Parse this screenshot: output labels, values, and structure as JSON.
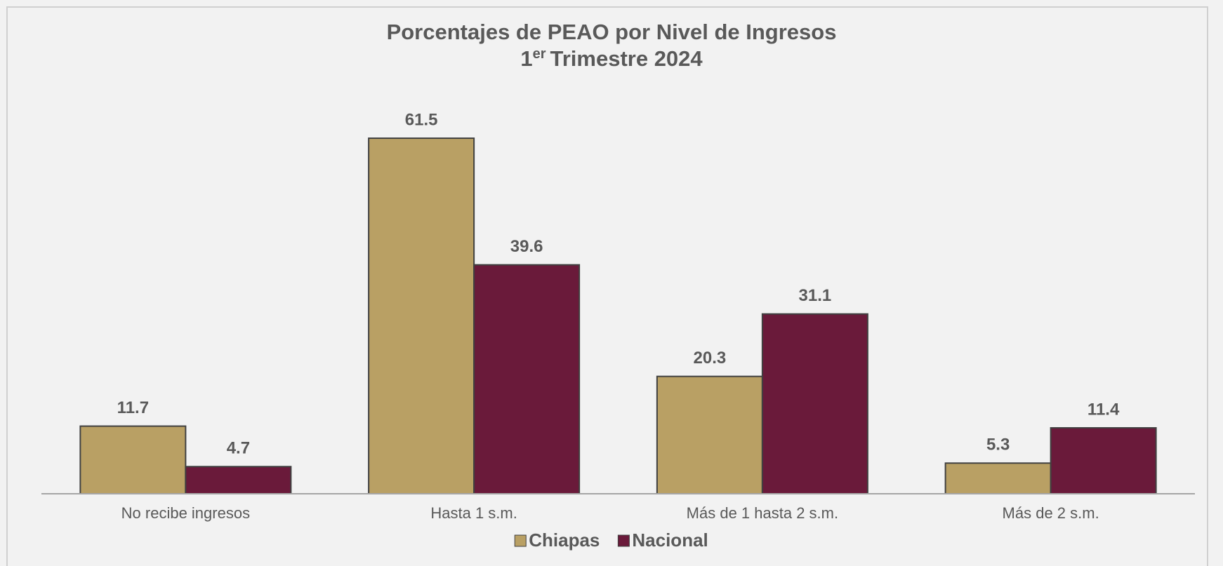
{
  "chart_data": {
    "type": "bar",
    "title": "Porcentajes de PEAO por Nivel de Ingresos",
    "subtitle": {
      "number": "1",
      "suffix": "er",
      "rest": "Trimestre 2024"
    },
    "categories": [
      "No recibe ingresos",
      "Hasta 1 s.m.",
      "Más de 1 hasta 2 s.m.",
      "Más de 2 s.m."
    ],
    "series": [
      {
        "name": "Chiapas",
        "color": "#b9a064",
        "values": [
          11.7,
          61.5,
          20.3,
          5.3
        ]
      },
      {
        "name": "Nacional",
        "color": "#6a1a3a",
        "values": [
          4.7,
          39.6,
          31.1,
          11.4
        ]
      }
    ],
    "ylim": [
      0,
      70
    ],
    "legend": "bottom"
  }
}
